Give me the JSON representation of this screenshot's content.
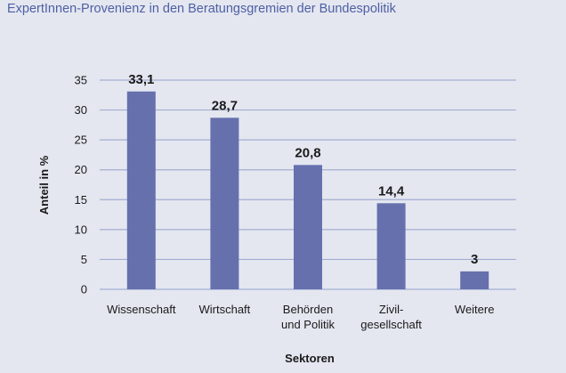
{
  "title": "ExpertInnen-Provenienz in den Beratungsgremien der Bundespolitik",
  "chart_data": {
    "type": "bar",
    "categories": [
      [
        "Wissenschaft"
      ],
      [
        "Wirtschaft"
      ],
      [
        "Behörden",
        "und Politik"
      ],
      [
        "Zivil-",
        "gesellschaft"
      ],
      [
        "Weitere"
      ]
    ],
    "values": [
      33.1,
      28.7,
      20.8,
      14.4,
      3
    ],
    "value_labels": [
      "33,1",
      "28,7",
      "20,8",
      "14,4",
      "3"
    ],
    "xlabel": "Sektoren",
    "ylabel": "Anteil in %",
    "ylim": [
      0,
      35
    ],
    "yticks": [
      0,
      5,
      10,
      15,
      20,
      25,
      30,
      35
    ],
    "grid": true,
    "bar_color": "#6570ad",
    "grid_color": "#a4aed2"
  }
}
